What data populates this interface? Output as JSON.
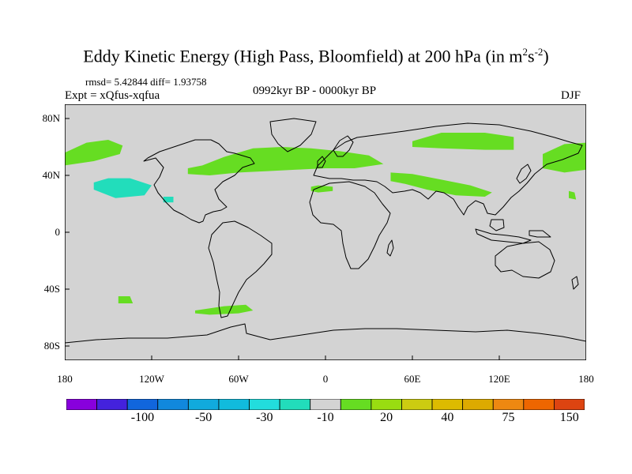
{
  "title": {
    "main": "Eddy Kinetic Energy (High Pass, Bloomfield) at 200 hPa (in m",
    "sup1": "2",
    "mid": "s",
    "sup2": "-2",
    "end": ")"
  },
  "stats": "rmsd= 5.42844 diff= 1.93758",
  "experiment": "Expt = xQfus-xqfua",
  "period": "0992kyr BP - 0000kyr BP",
  "season": "DJF",
  "map": {
    "lon_range": [
      -180,
      180
    ],
    "lat_range": [
      -90,
      90
    ],
    "y_axis_labels": [
      {
        "lat": 80,
        "text": "80N"
      },
      {
        "lat": 40,
        "text": "40N"
      },
      {
        "lat": 0,
        "text": "0"
      },
      {
        "lat": -40,
        "text": "40S"
      },
      {
        "lat": -80,
        "text": "80S"
      }
    ],
    "x_axis_labels": [
      {
        "lon": -180,
        "text": "180"
      },
      {
        "lon": -120,
        "text": "120W"
      },
      {
        "lon": -60,
        "text": "60W"
      },
      {
        "lon": 0,
        "text": "0"
      },
      {
        "lon": 60,
        "text": "60E"
      },
      {
        "lon": 120,
        "text": "120E"
      },
      {
        "lon": 180,
        "text": "180"
      }
    ],
    "background_color": "#d3d3d3",
    "regions": [
      {
        "name": "north-pacific-east",
        "category": "20",
        "color": "#66dd22",
        "points": [
          [
            -180,
            56
          ],
          [
            -165,
            63
          ],
          [
            -150,
            65
          ],
          [
            -140,
            61
          ],
          [
            -142,
            55
          ],
          [
            -160,
            50
          ],
          [
            -180,
            47
          ]
        ]
      },
      {
        "name": "north-pacific-west",
        "category": "20",
        "color": "#66dd22",
        "points": [
          [
            165,
            42
          ],
          [
            180,
            44
          ],
          [
            180,
            63
          ],
          [
            165,
            62
          ],
          [
            150,
            55
          ],
          [
            150,
            45
          ]
        ]
      },
      {
        "name": "north-america-atlantic-europe",
        "category": "20",
        "color": "#66dd22",
        "points": [
          [
            -95,
            45
          ],
          [
            -85,
            47
          ],
          [
            -70,
            53
          ],
          [
            -50,
            59
          ],
          [
            -30,
            60
          ],
          [
            -10,
            59
          ],
          [
            10,
            57
          ],
          [
            30,
            54
          ],
          [
            40,
            48
          ],
          [
            20,
            45
          ],
          [
            0,
            45
          ],
          [
            -20,
            44
          ],
          [
            -40,
            43
          ],
          [
            -60,
            42
          ],
          [
            -80,
            40
          ],
          [
            -95,
            41
          ]
        ]
      },
      {
        "name": "siberia",
        "category": "20",
        "color": "#66dd22",
        "points": [
          [
            60,
            64
          ],
          [
            80,
            70
          ],
          [
            110,
            70
          ],
          [
            130,
            67
          ],
          [
            130,
            58
          ],
          [
            110,
            58
          ],
          [
            80,
            59
          ],
          [
            60,
            60
          ]
        ]
      },
      {
        "name": "asian-jet",
        "category": "20",
        "color": "#66dd22",
        "points": [
          [
            45,
            42
          ],
          [
            60,
            41
          ],
          [
            80,
            37
          ],
          [
            100,
            33
          ],
          [
            115,
            28
          ],
          [
            110,
            25
          ],
          [
            90,
            26
          ],
          [
            70,
            30
          ],
          [
            55,
            34
          ],
          [
            45,
            36
          ]
        ]
      },
      {
        "name": "north-africa",
        "category": "20",
        "color": "#66dd22",
        "points": [
          [
            -10,
            32
          ],
          [
            -5,
            33
          ],
          [
            5,
            32
          ],
          [
            5,
            29
          ],
          [
            -5,
            28
          ],
          [
            -10,
            29
          ]
        ]
      },
      {
        "name": "east-pacific-small",
        "category": "20",
        "color": "#66dd22",
        "points": [
          [
            168,
            29
          ],
          [
            172,
            28
          ],
          [
            173,
            23
          ],
          [
            168,
            24
          ]
        ]
      },
      {
        "name": "south-pacific-patch",
        "category": "20",
        "color": "#66dd22",
        "points": [
          [
            -143,
            -45
          ],
          [
            -135,
            -45
          ],
          [
            -133,
            -50
          ],
          [
            -143,
            -50
          ]
        ]
      },
      {
        "name": "drake-passage",
        "category": "20",
        "color": "#66dd22",
        "points": [
          [
            -90,
            -55
          ],
          [
            -70,
            -52
          ],
          [
            -55,
            -51
          ],
          [
            -50,
            -55
          ],
          [
            -60,
            -57
          ],
          [
            -80,
            -58
          ],
          [
            -90,
            -57
          ]
        ]
      },
      {
        "name": "north-pacific-negative",
        "category": "-10",
        "color": "#22ddbb",
        "points": [
          [
            -160,
            35
          ],
          [
            -150,
            38
          ],
          [
            -135,
            38
          ],
          [
            -120,
            33
          ],
          [
            -125,
            26
          ],
          [
            -145,
            24
          ],
          [
            -160,
            30
          ]
        ]
      },
      {
        "name": "baja-negative",
        "category": "-10",
        "color": "#22ddbb",
        "points": [
          [
            -112,
            25
          ],
          [
            -105,
            25
          ],
          [
            -105,
            21
          ],
          [
            -112,
            21
          ]
        ]
      }
    ]
  },
  "colorbar": {
    "colors": [
      "#8800dd",
      "#4422dd",
      "#1166dd",
      "#1188dd",
      "#11aadd",
      "#11bbdd",
      "#22dddd",
      "#22ddbb",
      "#d3d3d3",
      "#66dd22",
      "#99dd11",
      "#cccc11",
      "#ddbb00",
      "#ddaa00",
      "#ee8811",
      "#ee6600",
      "#dd4411"
    ],
    "labels": [
      {
        "index": 2,
        "text": "-100"
      },
      {
        "index": 4,
        "text": "-50"
      },
      {
        "index": 6,
        "text": "-30"
      },
      {
        "index": 8,
        "text": "-10"
      },
      {
        "index": 10,
        "text": "20"
      },
      {
        "index": 12,
        "text": "40"
      },
      {
        "index": 14,
        "text": "75"
      },
      {
        "index": 16,
        "text": "150"
      }
    ]
  }
}
